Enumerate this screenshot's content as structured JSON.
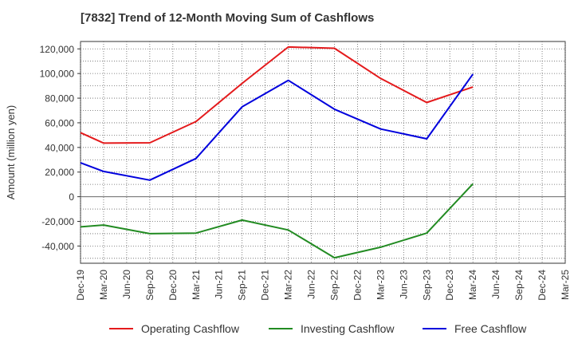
{
  "chart_data": {
    "type": "line",
    "title": "[7832]  Trend of 12-Month Moving Sum of Cashflows",
    "ylabel": "Amount (million yen)",
    "xlabel": "",
    "categories": [
      "Dec-19",
      "Mar-20",
      "Jun-20",
      "Sep-20",
      "Dec-20",
      "Mar-21",
      "Jun-21",
      "Sep-21",
      "Dec-21",
      "Mar-22",
      "Jun-22",
      "Sep-22",
      "Dec-22",
      "Mar-23",
      "Jun-23",
      "Sep-23",
      "Dec-23",
      "Mar-24",
      "Jun-24",
      "Sep-24",
      "Dec-24",
      "Mar-25"
    ],
    "ylim": [
      -54000,
      126000
    ],
    "yticks": [
      120000,
      100000,
      80000,
      60000,
      40000,
      20000,
      0,
      -20000,
      -40000
    ],
    "ytick_labels": [
      "120,000",
      "100,000",
      "80,000",
      "60,000",
      "40,000",
      "20,000",
      "0",
      "-20,000",
      "-40,000"
    ],
    "grid": true,
    "legend_position": "bottom",
    "series": [
      {
        "name": "Operating Cashflow",
        "color": "#e41a1c",
        "points": [
          [
            "Dec-19",
            52000
          ],
          [
            "Mar-20",
            43500
          ],
          [
            "Sep-20",
            43800
          ],
          [
            "Mar-21",
            61000
          ],
          [
            "Sep-21",
            92000
          ],
          [
            "Mar-22",
            121500
          ],
          [
            "Sep-22",
            120500
          ],
          [
            "Mar-23",
            96000
          ],
          [
            "Sep-23",
            76500
          ],
          [
            "Mar-24",
            89000
          ]
        ]
      },
      {
        "name": "Investing Cashflow",
        "color": "#228b22",
        "points": [
          [
            "Dec-19",
            -24500
          ],
          [
            "Mar-20",
            -23000
          ],
          [
            "Sep-20",
            -30000
          ],
          [
            "Mar-21",
            -29500
          ],
          [
            "Sep-21",
            -19000
          ],
          [
            "Mar-22",
            -27000
          ],
          [
            "Sep-22",
            -49500
          ],
          [
            "Mar-23",
            -41000
          ],
          [
            "Sep-23",
            -29500
          ],
          [
            "Mar-24",
            10500
          ]
        ]
      },
      {
        "name": "Free Cashflow",
        "color": "#0000dd",
        "points": [
          [
            "Dec-19",
            27500
          ],
          [
            "Mar-20",
            20500
          ],
          [
            "Sep-20",
            13500
          ],
          [
            "Mar-21",
            31000
          ],
          [
            "Sep-21",
            73000
          ],
          [
            "Mar-22",
            94500
          ],
          [
            "Sep-22",
            71000
          ],
          [
            "Mar-23",
            55000
          ],
          [
            "Sep-23",
            47000
          ],
          [
            "Mar-24",
            99500
          ]
        ]
      }
    ]
  }
}
